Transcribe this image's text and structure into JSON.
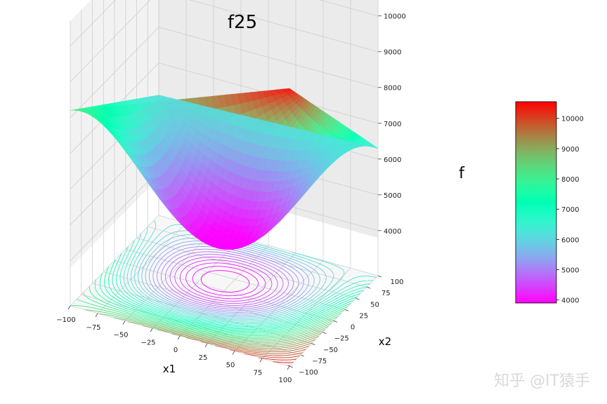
{
  "chart_data": {
    "type": "surface3d",
    "title": "f25",
    "xlabel": "x1",
    "ylabel": "x2",
    "zlabel": "f",
    "x_range": [
      -100,
      100
    ],
    "y_range": [
      -100,
      100
    ],
    "z_range": [
      3800,
      10700
    ],
    "x_ticks": [
      -100,
      -75,
      -50,
      -25,
      0,
      25,
      50,
      75,
      100
    ],
    "y_ticks": [
      -100,
      -75,
      -50,
      -25,
      0,
      25,
      50,
      75,
      100
    ],
    "z_ticks": [
      4000,
      5000,
      6000,
      7000,
      8000,
      9000,
      10000
    ],
    "x_tick_labels": [
      "−100",
      "−75",
      "−50",
      "−25",
      "0",
      "25",
      "50",
      "75",
      "100"
    ],
    "y_tick_labels": [
      "−100",
      "−75",
      "−50",
      "−25",
      "0",
      "25",
      "50",
      "75",
      "100"
    ],
    "z_tick_labels": [
      "4000",
      "5000",
      "6000",
      "7000",
      "8000",
      "9000",
      "10000"
    ],
    "corner_values": {
      "x1=-100,x2=-100": 8200,
      "x1=100,x2=-100": 10500,
      "x1=100,x2=100": 6300,
      "x1=-100,x2=100": 6100,
      "minimum": 3900
    },
    "colormap": "rainbow",
    "colorbar": {
      "range": [
        3900,
        10550
      ],
      "ticks": [
        4000,
        5000,
        6000,
        7000,
        8000,
        9000,
        10000
      ],
      "tick_labels": [
        "4000",
        "5000",
        "6000",
        "7000",
        "8000",
        "9000",
        "10000"
      ],
      "position": "right"
    },
    "contour_projection": "floor",
    "grid": true
  },
  "watermark": "知乎 @IT猿手"
}
